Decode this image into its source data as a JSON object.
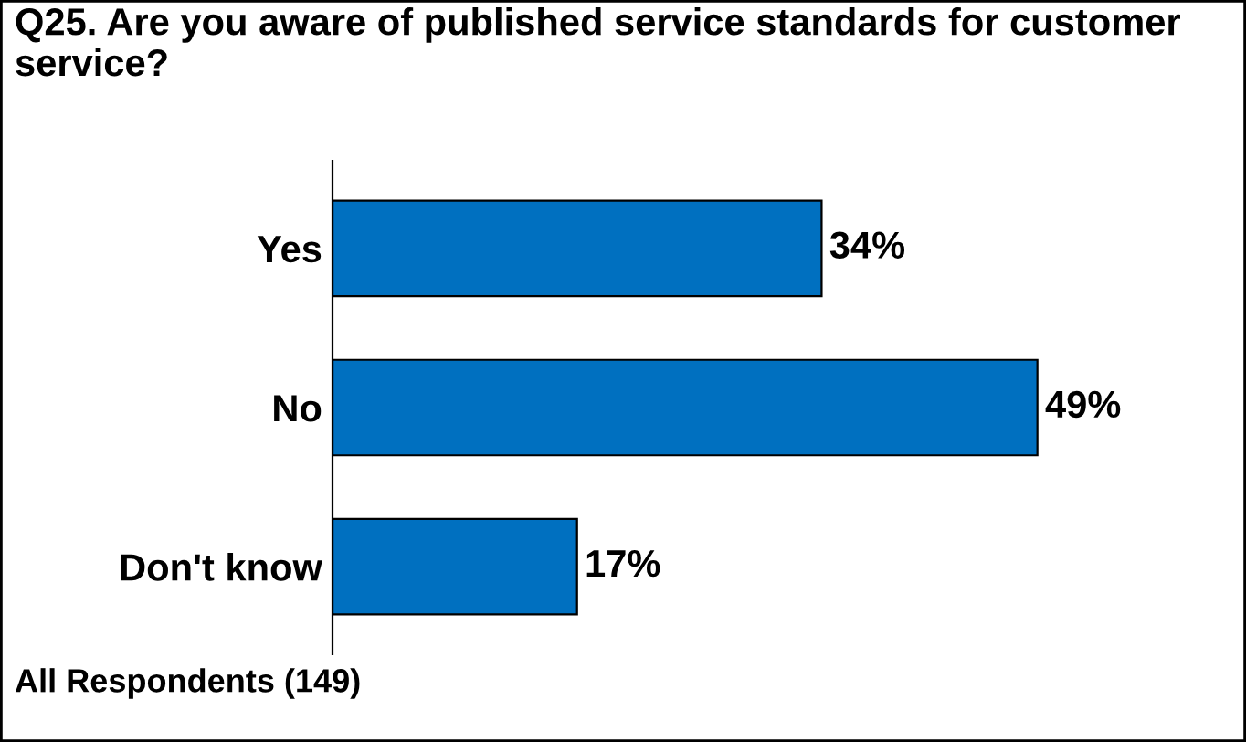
{
  "chart_data": {
    "type": "bar",
    "orientation": "horizontal",
    "title": "Q25. Are you aware of published service standards for customer service?",
    "categories": [
      "Yes",
      "No",
      "Don't know"
    ],
    "values": [
      34,
      49,
      17
    ],
    "value_labels": [
      "34%",
      "49%",
      "17%"
    ],
    "color": "#0070c0",
    "grid": false,
    "legend": false,
    "annotations": [
      "All Respondents (149)"
    ]
  }
}
